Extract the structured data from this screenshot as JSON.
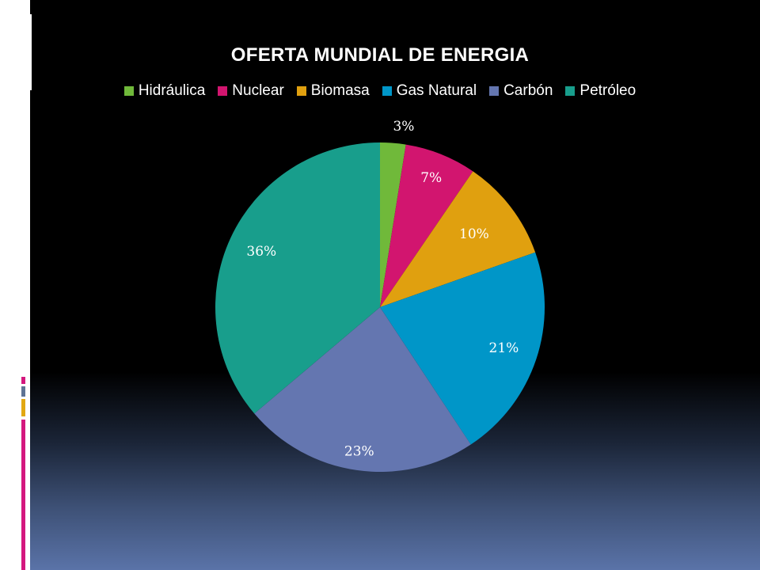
{
  "slide": {
    "left_bar_colors": [
      "#d4187e",
      "#5f7394",
      "#e2a812",
      "#d4187e"
    ]
  },
  "chart_data": {
    "type": "pie",
    "title": "OFERTA MUNDIAL DE ENERGIA",
    "legend_position": "top",
    "slices": [
      {
        "name": "Hidráulica",
        "value": 2.5,
        "label": "3%",
        "color": "#70b93a"
      },
      {
        "name": "Nuclear",
        "value": 7,
        "label": "7%",
        "color": "#d2156f"
      },
      {
        "name": "Biomasa",
        "value": 10,
        "label": "10%",
        "color": "#e0a00f"
      },
      {
        "name": "Gas Natural",
        "value": 21,
        "label": "21%",
        "color": "#0096c8"
      },
      {
        "name": "Carbón",
        "value": 23,
        "label": "23%",
        "color": "#6476b0"
      },
      {
        "name": "Petróleo",
        "value": 36,
        "label": "36%",
        "color": "#189e8c"
      }
    ]
  }
}
